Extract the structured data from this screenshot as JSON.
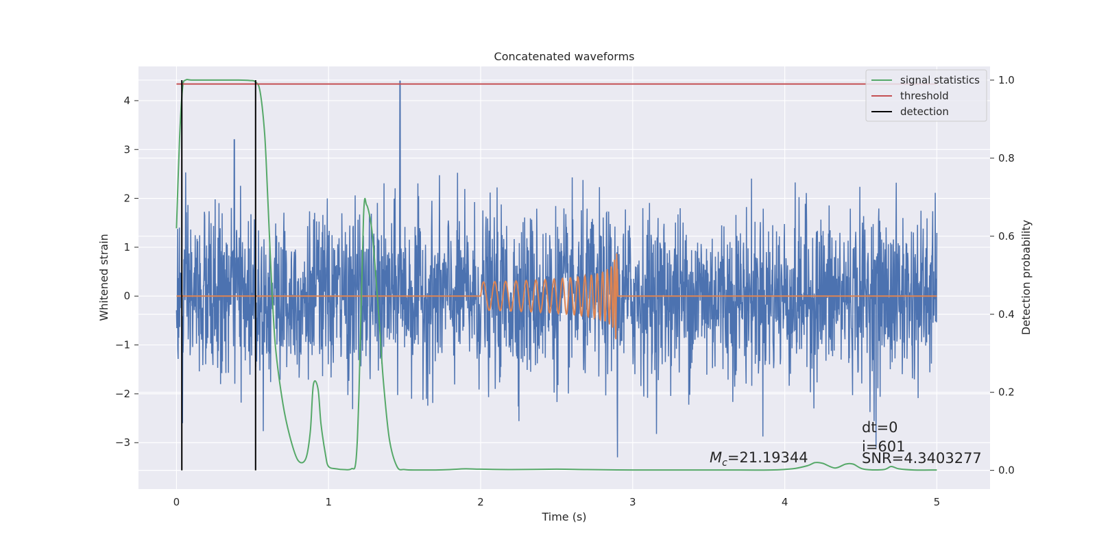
{
  "chart_data": {
    "type": "line",
    "title": "Concatenated waveforms",
    "xlabel": "Time (s)",
    "ylabel": "Whitened strain",
    "y2label": "Detection probability",
    "xlim": [
      -0.25,
      5.35
    ],
    "ylim": [
      -3.95,
      4.7
    ],
    "y2lim": [
      -0.048,
      1.035
    ],
    "x_ticks": [
      0,
      1,
      2,
      3,
      4,
      5
    ],
    "y_ticks": [
      -3,
      -2,
      -1,
      0,
      1,
      2,
      3,
      4
    ],
    "y2_ticks": [
      0.0,
      0.2,
      0.4,
      0.6,
      0.8,
      1.0
    ],
    "x_tick_labels": [
      "0",
      "1",
      "2",
      "3",
      "4",
      "5"
    ],
    "y_tick_labels": [
      "−3",
      "−2",
      "−1",
      "0",
      "1",
      "2",
      "3",
      "4"
    ],
    "y2_tick_labels": [
      "0.0",
      "0.2",
      "0.4",
      "0.6",
      "0.8",
      "1.0"
    ],
    "grid": true,
    "legend_position": "top-right",
    "colors": {
      "strain": "#4c72b0",
      "template": "#dd8452",
      "signal_statistics": "#55a868",
      "threshold": "#c44e52",
      "detection": "#000000",
      "axes_bg": "#eaeaf2",
      "grid": "#ffffff"
    },
    "series": [
      {
        "name": "",
        "axis": "left",
        "description_kind": "noise",
        "x_range": [
          0,
          5
        ],
        "sigma": 0.85,
        "notable_spikes": [
          [
            0.04,
            -2.6
          ],
          [
            0.38,
            3.2
          ],
          [
            1.47,
            4.4
          ],
          [
            2.9,
            -3.3
          ],
          [
            4.6,
            -3.1
          ]
        ]
      },
      {
        "name": "",
        "axis": "left",
        "description_kind": "chirp",
        "x_range": [
          0,
          5
        ],
        "chirp_start": 2.0,
        "chirp_end": 2.9,
        "peak_amplitude": 0.9
      },
      {
        "name": "signal statistics",
        "axis": "right",
        "x": [
          0,
          0.02,
          0.04,
          0.06,
          0.1,
          0.2,
          0.4,
          0.48,
          0.52,
          0.55,
          0.58,
          0.6,
          0.62,
          0.65,
          0.7,
          0.75,
          0.8,
          0.85,
          0.88,
          0.9,
          0.93,
          0.95,
          0.98,
          1.0,
          1.05,
          1.1,
          1.15,
          1.18,
          1.2,
          1.23,
          1.25,
          1.28,
          1.3,
          1.33,
          1.36,
          1.4,
          1.45,
          1.5,
          1.6,
          1.7,
          1.8,
          1.9,
          2.0,
          2.2,
          2.5,
          2.7,
          3.0,
          3.3,
          3.6,
          3.9,
          4.05,
          4.15,
          4.2,
          4.25,
          4.33,
          4.4,
          4.45,
          4.52,
          4.65,
          4.7,
          4.75,
          4.85,
          5.0
        ],
        "y": [
          0.62,
          0.85,
          0.98,
          1.0,
          1.0,
          1.0,
          1.0,
          0.999,
          0.995,
          0.97,
          0.86,
          0.7,
          0.52,
          0.32,
          0.17,
          0.08,
          0.025,
          0.03,
          0.1,
          0.22,
          0.21,
          0.12,
          0.04,
          0.01,
          0.004,
          0.002,
          0.004,
          0.025,
          0.2,
          0.65,
          0.68,
          0.63,
          0.55,
          0.4,
          0.23,
          0.08,
          0.01,
          0.002,
          0.001,
          0.001,
          0.002,
          0.004,
          0.003,
          0.002,
          0.003,
          0.002,
          0.001,
          0.001,
          0.001,
          0.001,
          0.004,
          0.012,
          0.02,
          0.018,
          0.006,
          0.016,
          0.016,
          0.003,
          0.002,
          0.01,
          0.004,
          0.001,
          0.001
        ]
      },
      {
        "name": "threshold",
        "axis": "right",
        "x": [
          0,
          5
        ],
        "y": [
          0.99,
          0.99
        ]
      }
    ],
    "detections": {
      "name": "detection",
      "x": [
        0.035,
        0.52
      ]
    },
    "annotations": {
      "mc_symbol": "M",
      "mc_sub": "c",
      "mc_value": "=21.19344",
      "dt": "dt=0",
      "i": "i=601",
      "snr": "SNR=4.3403277"
    }
  }
}
